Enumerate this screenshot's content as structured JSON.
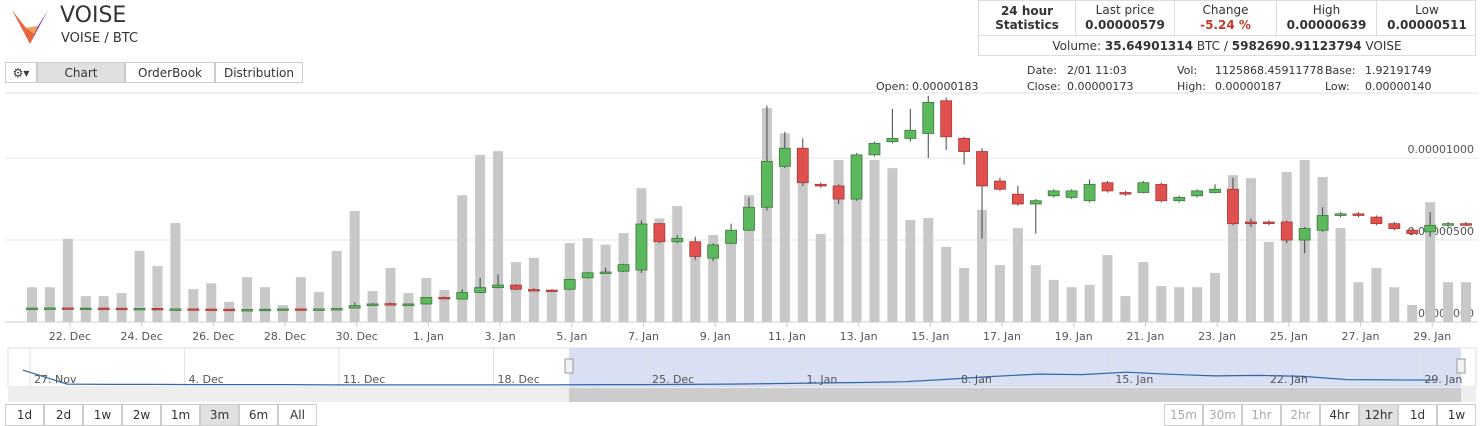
{
  "header": {
    "name": "VOISE",
    "pair": "VOISE / BTC"
  },
  "stats": {
    "title": "24 hour Statistics",
    "columns": [
      {
        "label": "Last price",
        "value": "0.00000579"
      },
      {
        "label": "Change",
        "value": "-5.24 %"
      },
      {
        "label": "High",
        "value": "0.00000639"
      },
      {
        "label": "Low",
        "value": "0.00000511"
      }
    ],
    "volume": [
      "Volume:",
      "35.64901314",
      "BTC /",
      "5982690.91123794",
      "VOISE"
    ]
  },
  "tabs": [
    "Chart",
    "OrderBook",
    "Distribution"
  ],
  "info": [
    [
      "Open:",
      "0.00000183"
    ],
    [
      "Date:",
      "2/01 11:03"
    ],
    [
      "Close:",
      "0.00000173"
    ],
    [
      "Vol:",
      "1125868.45911778"
    ],
    [
      "High:",
      "0.00000187"
    ],
    [
      "Base:",
      "1.92191749"
    ],
    [
      "Low:",
      "0.00000140"
    ]
  ],
  "ranges": [
    "1d",
    "2d",
    "1w",
    "2w",
    "1m",
    "3m",
    "6m",
    "All"
  ],
  "intervals": [
    "15m",
    "30m",
    "1hr",
    "2hr",
    "4hr",
    "12hr",
    "1d",
    "1w"
  ],
  "chart_data": {
    "type": "candlestick",
    "up_color": "#5cb85c",
    "down_color": "#e0504e",
    "volume_color": "#c8c8c8",
    "grid": true,
    "ylim": [
      0,
      1.385e-05
    ],
    "yticks": [
      {
        "value": 0,
        "label": "0.00000000"
      },
      {
        "value": 5e-06,
        "label": "0.00000500"
      },
      {
        "value": 1e-05,
        "label": "0.00001000"
      }
    ],
    "vlim": [
      0,
      6000000
    ],
    "xticks": [
      {
        "value": 1,
        "label": "22. Dec"
      },
      {
        "value": 5,
        "label": "24. Dec"
      },
      {
        "value": 9,
        "label": "26. Dec"
      },
      {
        "value": 13,
        "label": "28. Dec"
      },
      {
        "value": 17,
        "label": "30. Dec"
      },
      {
        "value": 21,
        "label": "1. Jan"
      },
      {
        "value": 25,
        "label": "3. Jan"
      },
      {
        "value": 29,
        "label": "5. Jan"
      },
      {
        "value": 33,
        "label": "7. Jan"
      },
      {
        "value": 37,
        "label": "9. Jan"
      },
      {
        "value": 41,
        "label": "11. Jan"
      },
      {
        "value": 45,
        "label": "13. Jan"
      },
      {
        "value": 49,
        "label": "15. Jan"
      },
      {
        "value": 53,
        "label": "17. Jan"
      },
      {
        "value": 57,
        "label": "19. Jan"
      },
      {
        "value": 61,
        "label": "21. Jan"
      },
      {
        "value": 65,
        "label": "23. Jan"
      },
      {
        "value": 69,
        "label": "25. Jan"
      },
      {
        "value": 73,
        "label": "27. Jan"
      },
      {
        "value": 77,
        "label": "29. Jan"
      }
    ],
    "open": [
      8.3e-07,
      8.5e-07,
      8.6e-07,
      8.5e-07,
      8.5e-07,
      8.4e-07,
      8.3e-07,
      8.3e-07,
      7.8e-07,
      8e-07,
      7.9e-07,
      7.8e-07,
      7.5e-07,
      7.6e-07,
      7.8e-07,
      8e-07,
      7.9e-07,
      8e-07,
      8.5e-07,
      1e-06,
      1.12e-06,
      1e-06,
      1.1e-06,
      1.5e-06,
      1.4e-06,
      1.8e-06,
      2.1e-06,
      2.25e-06,
      1.98e-06,
      1.95e-06,
      2e-06,
      2.7e-06,
      3e-06,
      3.1e-06,
      3.17e-06,
      6e-06,
      4.9e-06,
      4.9e-06,
      3.9e-06,
      4.8e-06,
      5.6e-06,
      7e-06,
      9.5e-06,
      1.06e-05,
      8.4e-06,
      8.3e-06,
      7.5e-06,
      1.02e-05,
      1.1e-05,
      1.12e-05,
      1.15e-05,
      1.35e-05,
      1.12e-05,
      1.04e-05,
      8.6e-06,
      7.8e-06,
      7.2e-06,
      7.7e-06,
      7.6e-06,
      7.4e-06,
      8.5e-06,
      7.9e-06,
      7.9e-06,
      8.4e-06,
      7.4e-06,
      7.7e-06,
      7.9e-06,
      8.1e-06,
      6.1e-06,
      6.1e-06,
      6.1e-06,
      5e-06,
      5.6e-06,
      6.5e-06,
      6.6e-06,
      6.4e-06,
      6e-06,
      5.6e-06,
      5.5e-06,
      5.9e-06,
      6e-06
    ],
    "high": [
      8.8e-07,
      8.7e-07,
      8.8e-07,
      8.7e-07,
      8.6e-07,
      8.6e-07,
      8.5e-07,
      8.4e-07,
      8.2e-07,
      8.2e-07,
      8e-07,
      7.9e-07,
      7.8e-07,
      8e-07,
      8.2e-07,
      8.1e-07,
      8.2e-07,
      8.4e-07,
      1.2e-06,
      1.15e-06,
      1.18e-06,
      1.12e-06,
      1.52e-06,
      1.55e-06,
      2e-06,
      2.7e-06,
      2.9e-06,
      2.3e-06,
      2.05e-06,
      2e-06,
      2.65e-06,
      3.05e-06,
      3.3e-06,
      3.55e-06,
      6.2e-06,
      6.05e-06,
      5.3e-06,
      5.2e-06,
      4.8e-06,
      6e-06,
      7.6e-06,
      1.32e-05,
      1.16e-05,
      1.12e-05,
      8.5e-06,
      8.4e-06,
      1.03e-05,
      1.1e-05,
      1.3e-05,
      1.3e-05,
      1.38e-05,
      1.37e-05,
      1.13e-05,
      1.06e-05,
      8.8e-06,
      8.3e-06,
      7.5e-06,
      8.1e-06,
      8.1e-06,
      8.7e-06,
      8.6e-06,
      8e-06,
      8.6e-06,
      8.5e-06,
      7.7e-06,
      8.1e-06,
      8.4e-06,
      8.8e-06,
      6.3e-06,
      6.2e-06,
      6.2e-06,
      5.8e-06,
      7e-06,
      6.7e-06,
      6.7e-06,
      6.5e-06,
      6.1e-06,
      5.7e-06,
      6.7e-06,
      6.1e-06,
      6.1e-06
    ],
    "low": [
      8.1e-07,
      8.3e-07,
      8.4e-07,
      8.3e-07,
      8.3e-07,
      8.2e-07,
      8.1e-07,
      7.4e-07,
      7.6e-07,
      7.7e-07,
      7.6e-07,
      7.3e-07,
      7.4e-07,
      7.5e-07,
      7.7e-07,
      7.7e-07,
      7.8e-07,
      7.9e-07,
      8.4e-07,
      9.8e-07,
      1.02e-06,
      9.8e-07,
      1.08e-06,
      1.4e-06,
      1.38e-06,
      1.75e-06,
      2.05e-06,
      1.95e-06,
      1.9e-06,
      1.85e-06,
      1.95e-06,
      2.65e-06,
      2.95e-06,
      3.05e-06,
      3e-06,
      4.8e-06,
      4.8e-06,
      3.8e-06,
      3.7e-06,
      4.75e-06,
      5.55e-06,
      6.8e-06,
      9.4e-06,
      8.3e-06,
      8.2e-06,
      7.2e-06,
      7.4e-06,
      1.01e-05,
      1.09e-05,
      1.1e-05,
      1e-05,
      1.05e-05,
      9.6e-06,
      5.1e-06,
      8e-06,
      7.1e-06,
      5.4e-06,
      7.6e-06,
      7.5e-06,
      7.3e-06,
      7.9e-06,
      7.7e-06,
      7.85e-06,
      7.3e-06,
      7.3e-06,
      7.6e-06,
      7.85e-06,
      5.9e-06,
      5.8e-06,
      5.9e-06,
      4.8e-06,
      4.2e-06,
      5.5e-06,
      6.4e-06,
      6.4e-06,
      5.9e-06,
      5.6e-06,
      5.3e-06,
      5.2e-06,
      5.8e-06,
      5.85e-06
    ],
    "close": [
      8.5e-07,
      8.6e-07,
      8.5e-07,
      8.5e-07,
      8.4e-07,
      8.3e-07,
      8.3e-07,
      7.6e-07,
      8e-07,
      7.9e-07,
      7.8e-07,
      7.5e-07,
      7.6e-07,
      7.8e-07,
      8e-07,
      7.9e-07,
      8e-07,
      8.2e-07,
      1e-06,
      1.1e-06,
      1.05e-06,
      1.1e-06,
      1.5e-06,
      1.45e-06,
      1.8e-06,
      2.1e-06,
      2.25e-06,
      2e-06,
      1.95e-06,
      1.9e-06,
      2.6e-06,
      3e-06,
      3.05e-06,
      3.5e-06,
      5.98e-06,
      4.9e-06,
      5.1e-06,
      4e-06,
      4.7e-06,
      5.6e-06,
      7e-06,
      9.8e-06,
      1.06e-05,
      8.5e-06,
      8.3e-06,
      7.5e-06,
      1.02e-05,
      1.09e-05,
      1.12e-05,
      1.17e-05,
      1.34e-05,
      1.13e-05,
      1.04e-05,
      8.3e-06,
      8.1e-06,
      7.2e-06,
      7.4e-06,
      8e-06,
      8e-06,
      8.4e-06,
      8e-06,
      7.8e-06,
      8.5e-06,
      7.4e-06,
      7.6e-06,
      8e-06,
      8.1e-06,
      6e-06,
      6e-06,
      6e-06,
      5e-06,
      5.7e-06,
      6.5e-06,
      6.6e-06,
      6.5e-06,
      6e-06,
      5.7e-06,
      5.4e-06,
      5.9e-06,
      6e-06,
      5.9e-06
    ],
    "volume": [
      900000,
      900000,
      2150000,
      670000,
      670000,
      750000,
      1840000,
      1450000,
      2560000,
      850000,
      1000000,
      520000,
      1160000,
      900000,
      440000,
      1160000,
      780000,
      1840000,
      2870000,
      800000,
      1400000,
      750000,
      1140000,
      830000,
      3280000,
      4320000,
      4420000,
      1550000,
      1660000,
      800000,
      2040000,
      2170000,
      2000000,
      2300000,
      3460000,
      2680000,
      3000000,
      1730000,
      2250000,
      2120000,
      3280000,
      5530000,
      4880000,
      4450000,
      2280000,
      4190000,
      3650000,
      4190000,
      3980000,
      2640000,
      2690000,
      1940000,
      1400000,
      2900000,
      1470000,
      2430000,
      1470000,
      1090000,
      900000,
      960000,
      1730000,
      670000,
      1550000,
      930000,
      900000,
      900000,
      1270000,
      3800000,
      3720000,
      2070000,
      3880000,
      4190000,
      3750000,
      2430000,
      1030000,
      1400000,
      900000,
      440000,
      3100000,
      1030000,
      1030000
    ],
    "navigator": {
      "color": "#3366aa",
      "ylim": [
        0,
        1.4e-05
      ],
      "values": [
        6.4e-06,
        1.1e-06,
        1e-06,
        1e-06,
        9e-07,
        9e-07,
        9e-07,
        8e-07,
        8e-07,
        8e-07,
        8e-07,
        8e-07,
        8e-07,
        9e-07,
        9e-07,
        1e-06,
        1.1e-06,
        1.3e-06,
        1.5e-06,
        1.7e-06,
        2e-06,
        3e-06,
        4e-06,
        4.9e-06,
        4.7e-06,
        5.6e-06,
        4.8e-06,
        4.2e-06,
        4.4e-06,
        4e-06,
        2.8e-06,
        2.7e-06,
        2.6e-06
      ],
      "xticks": [
        {
          "value": 0.5,
          "label": "27. Nov"
        },
        {
          "value": 4,
          "label": "4. Dec"
        },
        {
          "value": 7.5,
          "label": "11. Dec"
        },
        {
          "value": 11,
          "label": "18. Dec"
        },
        {
          "value": 14.5,
          "label": "25. Dec"
        },
        {
          "value": 18,
          "label": "1. Jan"
        },
        {
          "value": 21.5,
          "label": "8. Jan"
        },
        {
          "value": 25,
          "label": "15. Jan"
        },
        {
          "value": 28.5,
          "label": "22. Jan"
        },
        {
          "value": 32,
          "label": "29. Jan"
        }
      ]
    }
  }
}
